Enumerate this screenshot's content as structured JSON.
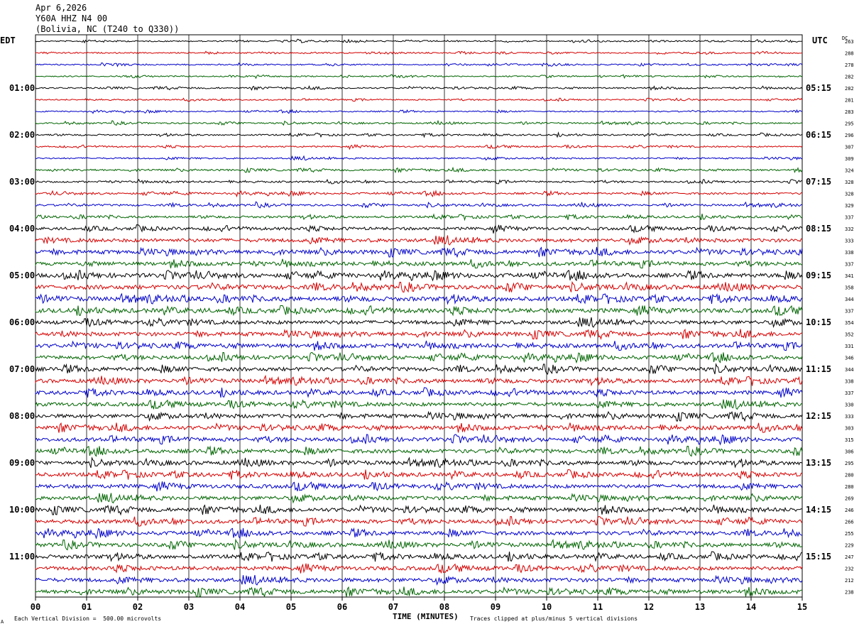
{
  "header": {
    "date": "Apr 6,2026",
    "station": "Y60A HHZ N4 00",
    "location": "(Bolivia, NC (T240 to Q330))"
  },
  "timezones": {
    "left": "EDT",
    "right": "UTC",
    "dc": "DC"
  },
  "footer": {
    "scale_note": "Each Vertical Division =  500.00 microvolts",
    "clip_note": "Traces clipped at plus/minus 5 vertical divisions",
    "corner_mark": "A"
  },
  "colors": {
    "cycle": [
      "#000000",
      "#d40000",
      "#0000c8",
      "#006400"
    ],
    "grid": "#000000"
  },
  "chart_data": {
    "type": "line",
    "title": "",
    "xlabel": "TIME (MINUTES)",
    "x_ticks": [
      "00",
      "01",
      "02",
      "03",
      "04",
      "05",
      "06",
      "07",
      "08",
      "09",
      "10",
      "11",
      "12",
      "13",
      "14",
      "15"
    ],
    "xlim": [
      0,
      15
    ],
    "minutes_per_trace": 15,
    "trace_count": 48,
    "left_hour_labels": [
      "01:00",
      "02:00",
      "03:00",
      "04:00",
      "05:00",
      "06:00",
      "07:00",
      "08:00",
      "09:00",
      "10:00",
      "11:00"
    ],
    "right_hour_labels": [
      "05:15",
      "06:15",
      "07:15",
      "08:15",
      "09:15",
      "10:15",
      "11:15",
      "12:15",
      "13:15",
      "14:15",
      "15:15"
    ],
    "hour_label_every_n_traces": 4,
    "hour_label_first_trace_index": 4,
    "dc_offsets": [
      263,
      288,
      278,
      282,
      282,
      281,
      283,
      295,
      296,
      307,
      309,
      324,
      328,
      328,
      329,
      337,
      332,
      333,
      338,
      337,
      341,
      358,
      344,
      337,
      354,
      352,
      331,
      346,
      344,
      338,
      337,
      330,
      333,
      303,
      315,
      306,
      295,
      280,
      280,
      269,
      246,
      266,
      255,
      229,
      247,
      232,
      212,
      238
    ],
    "relative_noise_level": [
      0.5,
      0.5,
      0.5,
      0.5,
      0.6,
      0.5,
      0.5,
      0.6,
      0.6,
      0.6,
      0.6,
      0.7,
      0.7,
      0.8,
      0.8,
      0.9,
      1.2,
      1.5,
      1.6,
      1.5,
      1.7,
      1.8,
      1.8,
      1.8,
      1.6,
      1.6,
      1.6,
      1.6,
      1.6,
      1.6,
      1.6,
      1.6,
      1.6,
      1.6,
      1.6,
      1.6,
      1.6,
      1.6,
      1.6,
      1.6,
      1.6,
      1.6,
      1.6,
      1.6,
      1.6,
      1.6,
      1.6,
      1.6
    ]
  }
}
